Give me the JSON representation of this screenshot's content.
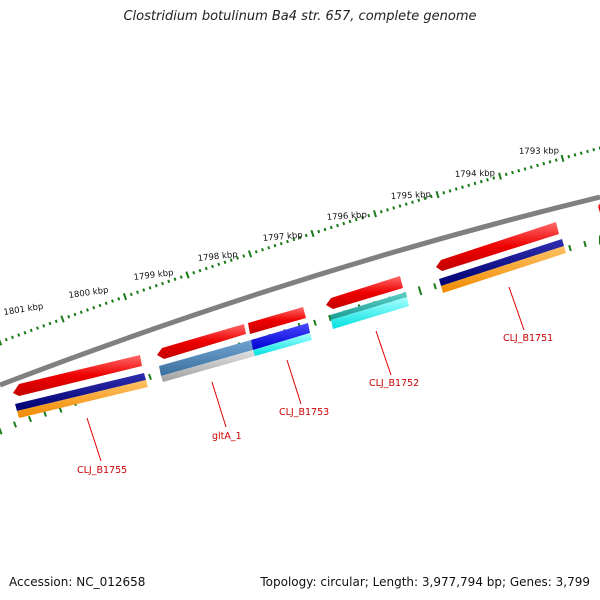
{
  "title": "Clostridium botulinum Ba4 str. 657, complete genome",
  "footer": {
    "accession": "Accession: NC_012658",
    "summary": "Topology: circular; Length: 3,977,794 bp; Genes: 3,799"
  },
  "kbp_ticks": [
    "1801 kbp",
    "1800 kbp",
    "1799 kbp",
    "1798 kbp",
    "1797 kbp",
    "1796 kbp",
    "1795 kbp",
    "1794 kbp",
    "1793 kbp"
  ],
  "gene_labels": [
    "CLJ_B1755",
    "gltA_1",
    "CLJ_B1753",
    "CLJ_B1752",
    "CLJ_B1751"
  ],
  "colors": {
    "backbone": "#808080",
    "gene": "#ee0000",
    "cog_navy": "#000080",
    "cog_orange": "#ff9900",
    "cog_steel": "#4682b4",
    "cog_gray": "#b4b4b4",
    "cog_blue": "#0000ff",
    "cog_cyan": "#00ffff",
    "cog_teal": "#20b2aa",
    "tick_green": "#1a7a1a",
    "label_red": "#cc0000"
  }
}
